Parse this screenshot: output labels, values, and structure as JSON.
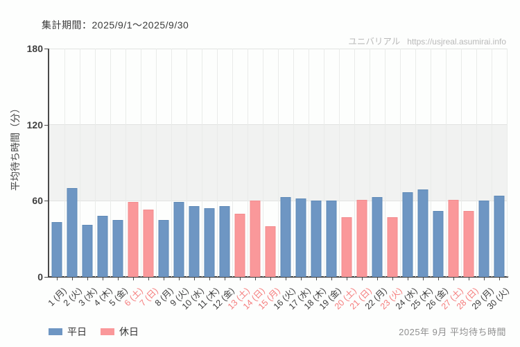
{
  "header": {
    "period_label": "集計期間：2025/9/1～2025/9/30",
    "watermark_site": "ユニバリアル",
    "watermark_url": "https://usjreal.asumirai.info"
  },
  "legend": [
    {
      "id": "weekday",
      "label": "平日",
      "color": "#6e96c3",
      "border": "#5f8ab7"
    },
    {
      "id": "holiday",
      "label": "休日",
      "color": "#fa989a",
      "border": "#f28b8d"
    }
  ],
  "footer": {
    "caption": "2025年 9月 平均待ち時間"
  },
  "colors": {
    "weekday_bar": "#6e96c3",
    "weekday_bar_border": "#5f8ab7",
    "holiday_bar": "#fa989a",
    "holiday_bar_border": "#f28b8d",
    "holiday_tick_label": "#f57c7c",
    "weekday_tick_label": "#3c3c3c",
    "band": "#f1f2f1",
    "grid": "#e1e3e1",
    "axis": "#3d3d3d",
    "watermark": "#b9b9b9"
  },
  "chart_data": {
    "type": "bar",
    "title": "2025年 9月 平均待ち時間",
    "ylabel": "平均待ち時間（分）",
    "xlabel": "",
    "ylim": [
      0,
      180
    ],
    "yticks": [
      0,
      60,
      120,
      180
    ],
    "shaded_band": [
      60,
      120
    ],
    "grid": true,
    "legend_position": "bottom-left",
    "days": [
      {
        "label": "1 (月)",
        "value": 43,
        "holiday": false
      },
      {
        "label": "2 (火)",
        "value": 70,
        "holiday": false
      },
      {
        "label": "3 (水)",
        "value": 41,
        "holiday": false
      },
      {
        "label": "4 (木)",
        "value": 48,
        "holiday": false
      },
      {
        "label": "5 (金)",
        "value": 45,
        "holiday": false
      },
      {
        "label": "6 (土)",
        "value": 59,
        "holiday": true
      },
      {
        "label": "7 (日)",
        "value": 53,
        "holiday": true
      },
      {
        "label": "8 (月)",
        "value": 45,
        "holiday": false
      },
      {
        "label": "9 (火)",
        "value": 59,
        "holiday": false
      },
      {
        "label": "10 (水)",
        "value": 56,
        "holiday": false
      },
      {
        "label": "11 (木)",
        "value": 54,
        "holiday": false
      },
      {
        "label": "12 (金)",
        "value": 56,
        "holiday": false
      },
      {
        "label": "13 (土)",
        "value": 50,
        "holiday": true
      },
      {
        "label": "14 (日)",
        "value": 60,
        "holiday": true
      },
      {
        "label": "15 (月)",
        "value": 40,
        "holiday": true
      },
      {
        "label": "16 (火)",
        "value": 63,
        "holiday": false
      },
      {
        "label": "17 (水)",
        "value": 62,
        "holiday": false
      },
      {
        "label": "18 (木)",
        "value": 60,
        "holiday": false
      },
      {
        "label": "19 (金)",
        "value": 60,
        "holiday": false
      },
      {
        "label": "20 (土)",
        "value": 47,
        "holiday": true
      },
      {
        "label": "21 (日)",
        "value": 61,
        "holiday": true
      },
      {
        "label": "22 (月)",
        "value": 63,
        "holiday": false
      },
      {
        "label": "23 (火)",
        "value": 47,
        "holiday": true
      },
      {
        "label": "24 (水)",
        "value": 67,
        "holiday": false
      },
      {
        "label": "25 (木)",
        "value": 69,
        "holiday": false
      },
      {
        "label": "26 (金)",
        "value": 52,
        "holiday": false
      },
      {
        "label": "27 (土)",
        "value": 61,
        "holiday": true
      },
      {
        "label": "28 (日)",
        "value": 52,
        "holiday": true
      },
      {
        "label": "29 (月)",
        "value": 60,
        "holiday": false
      },
      {
        "label": "30 (火)",
        "value": 64,
        "holiday": false
      }
    ]
  }
}
